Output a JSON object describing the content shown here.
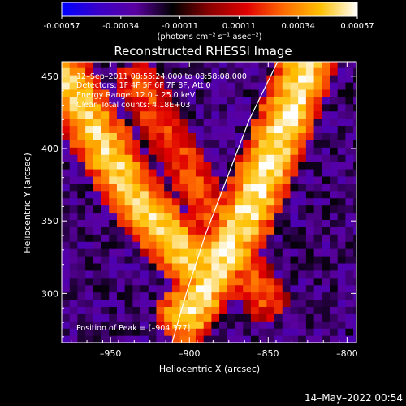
{
  "colorbar": {
    "ticks": [
      "-0.00057",
      "-0.00034",
      "-0.00011",
      "0.00011",
      "0.00034",
      "0.00057"
    ],
    "label": "(photons cm⁻² s⁻¹ asec⁻²)",
    "colormap": [
      "#0000ff",
      "#3a00c8",
      "#5a00a0",
      "#000000",
      "#8a0000",
      "#e00000",
      "#ff6a00",
      "#ffc000",
      "#ffffff"
    ]
  },
  "annotations": {
    "time_range": "12–Sep–2011 08:55:24.000 to 08:58:08.000",
    "detectors": "Detectors:  1F 4F 5F 6F 7F 8F, Att 0",
    "energy": "Energy Range: 12.0 – 25.0 keV",
    "clean": "Clean     Total counts: 4.18E+03",
    "peak": "Position of Peak = [–904,377]"
  },
  "footer": {
    "timestamp": "14–May–2022 00:54"
  },
  "chart_data": {
    "type": "heatmap",
    "title": "Reconstructed RHESSI Image",
    "xlabel": "Heliocentric X (arcsec)",
    "ylabel": "Heliocentric Y (arcsec)",
    "xlim": [
      -981,
      -794
    ],
    "ylim": [
      266,
      460
    ],
    "xticks": [
      -950,
      -900,
      -850,
      -800
    ],
    "yticks": [
      300,
      350,
      400,
      450
    ],
    "xtick_labels": [
      "–950",
      "–900",
      "–850",
      "–800"
    ],
    "ytick_labels": [
      "300",
      "350",
      "400",
      "450"
    ],
    "peak_position": [
      -904,
      377
    ],
    "bands": [
      {
        "name": "band-1",
        "points": [
          [
            -981,
            452
          ],
          [
            -968,
            428
          ],
          [
            -955,
            404
          ],
          [
            -942,
            380
          ],
          [
            -928,
            358
          ],
          [
            -912,
            338
          ],
          [
            -895,
            318
          ]
        ],
        "intensity": 0.00045
      },
      {
        "name": "band-2",
        "points": [
          [
            -932,
            445
          ],
          [
            -920,
            420
          ],
          [
            -906,
            396
          ],
          [
            -893,
            370
          ],
          [
            -880,
            345
          ],
          [
            -866,
            320
          ],
          [
            -852,
            296
          ]
        ],
        "intensity": 0.0002
      },
      {
        "name": "band-3",
        "points": [
          [
            -826,
            460
          ],
          [
            -834,
            434
          ],
          [
            -846,
            400
          ],
          [
            -858,
            368
          ],
          [
            -872,
            338
          ],
          [
            -886,
            312
          ],
          [
            -902,
            285
          ]
        ],
        "intensity": 0.0005
      }
    ],
    "limb_curve": [
      [
        -911,
        266
      ],
      [
        -902,
        300
      ],
      [
        -890,
        340
      ],
      [
        -876,
        380
      ],
      [
        -862,
        420
      ],
      [
        -844,
        460
      ]
    ]
  }
}
